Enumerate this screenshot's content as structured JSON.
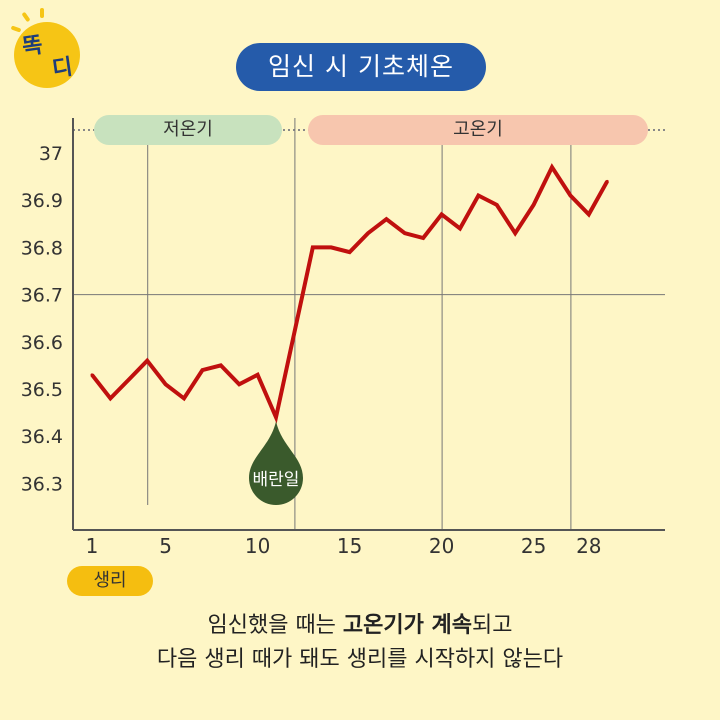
{
  "logo": {
    "line1": "똑",
    "line2": "디"
  },
  "title": "임신 시 기초체온",
  "phases": {
    "low": "저온기",
    "high": "고온기"
  },
  "ovulation_label": "배란일",
  "period_label": "생리",
  "caption": {
    "line1_pre": "임신했을 때는 ",
    "line1_bold": "고온기가 계속",
    "line1_post": "되고",
    "line2": "다음 생리 때가 돼도 생리를 시작하지 않는다"
  },
  "colors": {
    "background": "#FEF6C6",
    "line": "#C0100E",
    "title_pill": "#255BAA",
    "low_phase": "#C8E2BE",
    "high_phase": "#F7C6AE",
    "ovulation_marker": "#3A5A2C",
    "period_pill": "#F5BE10",
    "logo": "#F6C515"
  },
  "chart_data": {
    "type": "line",
    "x": [
      1,
      2,
      3,
      4,
      5,
      6,
      7,
      8,
      9,
      10,
      11,
      12,
      13,
      14,
      15,
      16,
      17,
      18,
      19,
      20,
      21,
      22,
      23,
      24,
      25,
      26,
      27,
      28,
      29
    ],
    "values": [
      36.53,
      36.48,
      36.52,
      36.56,
      36.51,
      36.48,
      36.54,
      36.55,
      36.51,
      36.53,
      36.44,
      36.62,
      36.8,
      36.8,
      36.79,
      36.83,
      36.86,
      36.83,
      36.82,
      36.87,
      36.84,
      36.91,
      36.89,
      36.83,
      36.89,
      36.97,
      36.91,
      36.87,
      36.94
    ],
    "x_ticks": [
      "1",
      "5",
      "10",
      "15",
      "20",
      "25",
      "28"
    ],
    "x_tick_values": [
      1,
      5,
      10,
      15,
      20,
      25,
      28
    ],
    "y_ticks": [
      "36.3",
      "36.4",
      "36.5",
      "36.6",
      "36.7",
      "36.8",
      "36.9",
      "37"
    ],
    "y_tick_values": [
      36.3,
      36.4,
      36.5,
      36.6,
      36.7,
      36.8,
      36.9,
      37.0
    ],
    "ylim": [
      36.22,
      37.08
    ],
    "xlim": [
      0.2,
      30
    ],
    "vertical_gridlines_at": [
      4,
      12,
      20,
      27
    ],
    "horizontal_gridline_at": 36.7,
    "ovulation_day": 11,
    "grid": true
  }
}
